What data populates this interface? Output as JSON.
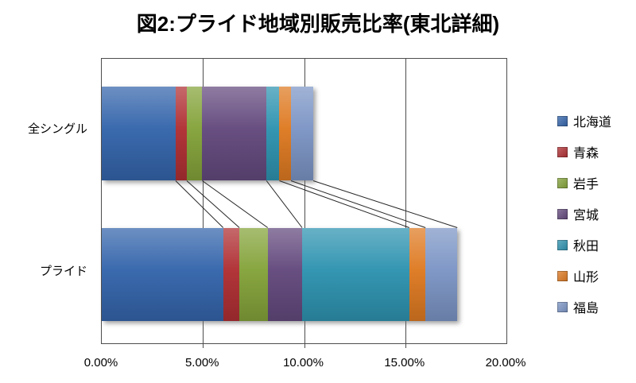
{
  "title": "図2:プライド地域別販売比率(東北詳細)",
  "chart_data": {
    "type": "bar",
    "orientation": "horizontal",
    "stacked": true,
    "title": "図2:プライド地域別販売比率(東北詳細)",
    "categories": [
      "全シングル",
      "プライド"
    ],
    "series": [
      {
        "name": "北海道",
        "color": "#3465AB",
        "values": [
          3.65,
          6.0
        ]
      },
      {
        "name": "青森",
        "color": "#AF2F33",
        "values": [
          0.55,
          0.8
        ]
      },
      {
        "name": "岩手",
        "color": "#84A33A",
        "values": [
          0.77,
          1.4
        ]
      },
      {
        "name": "宮城",
        "color": "#63497D",
        "values": [
          3.17,
          1.7
        ]
      },
      {
        "name": "秋田",
        "color": "#2E93B0",
        "values": [
          0.64,
          5.3
        ]
      },
      {
        "name": "山形",
        "color": "#DE7A22",
        "values": [
          0.57,
          0.8
        ]
      },
      {
        "name": "福島",
        "color": "#7C95C5",
        "values": [
          1.1,
          1.57
        ]
      }
    ],
    "x_ticks": [
      "0.00%",
      "5.00%",
      "10.00%",
      "15.00%",
      "20.00%"
    ],
    "x_tick_values": [
      0,
      5,
      10,
      15,
      20
    ],
    "xlim": [
      0,
      20
    ],
    "legend_position": "right",
    "grid": "vertical-only",
    "series_lines": true
  }
}
